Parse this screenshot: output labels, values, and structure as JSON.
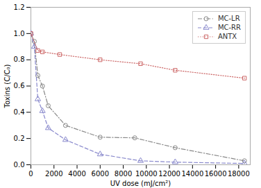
{
  "chart_data": {
    "type": "line",
    "xlabel": "UV dose (mJ/cm²)",
    "ylabel": "Toxins (C/C₀)",
    "xlim": [
      0,
      19000
    ],
    "ylim": [
      0,
      1.2
    ],
    "xticks": [
      0,
      2000,
      4000,
      6000,
      8000,
      10000,
      12000,
      14000,
      16000,
      18000
    ],
    "yticks": [
      {
        "value": 0,
        "label": "0.0"
      },
      0.2,
      0.4,
      0.6,
      0.8,
      {
        "value": 1.0,
        "label": "1.0"
      },
      1.2
    ],
    "grid": false,
    "legend": "upper right",
    "series": [
      {
        "name": "MC-LR",
        "color": "#888888",
        "marker": "circle",
        "line_style": "dashdot",
        "x": [
          0,
          300,
          600,
          1000,
          1500,
          3000,
          6000,
          9000,
          12500,
          18500
        ],
        "values": [
          1.0,
          0.94,
          0.68,
          0.6,
          0.45,
          0.3,
          0.21,
          0.205,
          0.13,
          0.03
        ]
      },
      {
        "name": "MC-RR",
        "color": "#8888cc",
        "marker": "triangle",
        "line_style": "dashed",
        "x": [
          0,
          300,
          600,
          1000,
          1500,
          3000,
          6000,
          9500,
          12500,
          18500
        ],
        "values": [
          1.0,
          0.9,
          0.5,
          0.41,
          0.28,
          0.19,
          0.08,
          0.03,
          0.02,
          0.01
        ]
      },
      {
        "name": "ANTX",
        "color": "#cc6666",
        "marker": "square",
        "line_style": "dotted",
        "x": [
          0,
          600,
          1000,
          2500,
          6000,
          9500,
          12500,
          18500
        ],
        "values": [
          1.0,
          0.87,
          0.86,
          0.84,
          0.8,
          0.77,
          0.72,
          0.66
        ]
      }
    ]
  }
}
